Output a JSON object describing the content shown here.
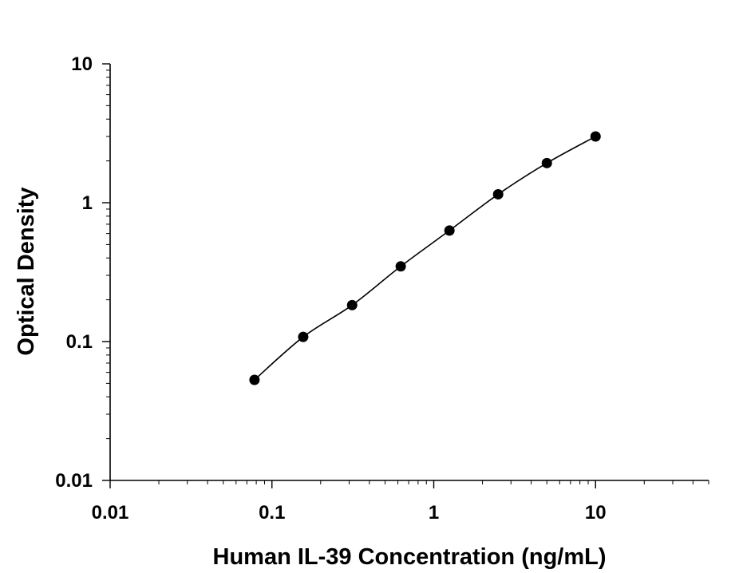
{
  "chart_data": {
    "type": "scatter",
    "title": "",
    "xlabel": "Human IL-39 Concentration (ng/mL)",
    "ylabel": "Optical Density",
    "x_scale": "log",
    "y_scale": "log",
    "xlim": [
      0.01,
      50
    ],
    "ylim": [
      0.01,
      10
    ],
    "x_ticks": [
      {
        "value": 0.01,
        "label": "0.01"
      },
      {
        "value": 0.1,
        "label": "0.1"
      },
      {
        "value": 1,
        "label": "1"
      },
      {
        "value": 10,
        "label": "10"
      }
    ],
    "y_ticks": [
      {
        "value": 0.01,
        "label": "0.01"
      },
      {
        "value": 0.1,
        "label": "0.1"
      },
      {
        "value": 1,
        "label": "1"
      },
      {
        "value": 10,
        "label": "10"
      }
    ],
    "grid": false,
    "legend": "none",
    "series": [
      {
        "marker": "circle",
        "color": "#000000",
        "fit_line": true,
        "points": [
          {
            "x": 0.078,
            "y": 0.053
          },
          {
            "x": 0.156,
            "y": 0.108
          },
          {
            "x": 0.313,
            "y": 0.183
          },
          {
            "x": 0.625,
            "y": 0.348
          },
          {
            "x": 1.25,
            "y": 0.63
          },
          {
            "x": 2.5,
            "y": 1.15
          },
          {
            "x": 5,
            "y": 1.93
          },
          {
            "x": 10,
            "y": 3.0
          }
        ]
      }
    ]
  }
}
